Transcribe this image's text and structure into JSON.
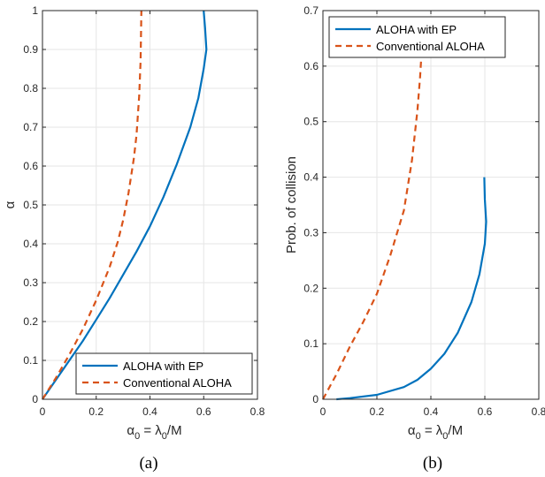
{
  "chart_data": [
    {
      "type": "line",
      "panel_label": "(a)",
      "xlabel_base": "α",
      "xlabel_sub": "0",
      "xlabel_mid": " = λ",
      "xlabel_sub2": "0",
      "xlabel_end": "/M",
      "ylabel": "α",
      "xlim": [
        0,
        0.8
      ],
      "ylim": [
        0,
        1
      ],
      "xticks": [
        "0",
        "0.2",
        "0.4",
        "0.6",
        "0.8"
      ],
      "yticks": [
        "0",
        "0.1",
        "0.2",
        "0.3",
        "0.4",
        "0.5",
        "0.6",
        "0.7",
        "0.8",
        "0.9",
        "1"
      ],
      "grid": true,
      "legend_position": "bottom-right",
      "series": [
        {
          "name": "ALOHA with EP",
          "color": "#0072BD",
          "style": "solid",
          "points": [
            [
              0,
              0
            ],
            [
              0.05,
              0.05
            ],
            [
              0.1,
              0.1
            ],
            [
              0.15,
              0.15
            ],
            [
              0.2,
              0.205
            ],
            [
              0.25,
              0.26
            ],
            [
              0.3,
              0.32
            ],
            [
              0.35,
              0.38
            ],
            [
              0.4,
              0.445
            ],
            [
              0.45,
              0.52
            ],
            [
              0.5,
              0.605
            ],
            [
              0.55,
              0.7
            ],
            [
              0.58,
              0.775
            ],
            [
              0.6,
              0.85
            ],
            [
              0.61,
              0.9
            ],
            [
              0.605,
              0.955
            ],
            [
              0.6,
              1.0
            ]
          ]
        },
        {
          "name": "Conventional ALOHA",
          "color": "#D95319",
          "style": "dashed",
          "points": [
            [
              0,
              0
            ],
            [
              0.05,
              0.055
            ],
            [
              0.1,
              0.115
            ],
            [
              0.15,
              0.18
            ],
            [
              0.2,
              0.255
            ],
            [
              0.25,
              0.34
            ],
            [
              0.28,
              0.405
            ],
            [
              0.3,
              0.46
            ],
            [
              0.32,
              0.53
            ],
            [
              0.34,
              0.62
            ],
            [
              0.35,
              0.68
            ],
            [
              0.36,
              0.78
            ],
            [
              0.365,
              0.87
            ],
            [
              0.368,
              1.0
            ]
          ]
        }
      ]
    },
    {
      "type": "line",
      "panel_label": "(b)",
      "xlabel_base": "α",
      "xlabel_sub": "0",
      "xlabel_mid": " = λ",
      "xlabel_sub2": "0",
      "xlabel_end": "/M",
      "ylabel": "Prob. of collision",
      "xlim": [
        0,
        0.8
      ],
      "ylim": [
        0,
        0.7
      ],
      "xticks": [
        "0",
        "0.2",
        "0.4",
        "0.6",
        "0.8"
      ],
      "yticks": [
        "0",
        "0.1",
        "0.2",
        "0.3",
        "0.4",
        "0.5",
        "0.6",
        "0.7"
      ],
      "grid": true,
      "legend_position": "top-left",
      "series": [
        {
          "name": "ALOHA with EP",
          "color": "#0072BD",
          "style": "solid",
          "points": [
            [
              0.05,
              0.0
            ],
            [
              0.1,
              0.002
            ],
            [
              0.2,
              0.008
            ],
            [
              0.3,
              0.022
            ],
            [
              0.35,
              0.035
            ],
            [
              0.4,
              0.055
            ],
            [
              0.45,
              0.082
            ],
            [
              0.5,
              0.12
            ],
            [
              0.55,
              0.175
            ],
            [
              0.58,
              0.225
            ],
            [
              0.6,
              0.28
            ],
            [
              0.605,
              0.32
            ],
            [
              0.6,
              0.36
            ],
            [
              0.598,
              0.4
            ]
          ]
        },
        {
          "name": "Conventional ALOHA",
          "color": "#D95319",
          "style": "dashed",
          "points": [
            [
              0,
              0
            ],
            [
              0.05,
              0.045
            ],
            [
              0.1,
              0.095
            ],
            [
              0.15,
              0.14
            ],
            [
              0.2,
              0.19
            ],
            [
              0.25,
              0.26
            ],
            [
              0.3,
              0.34
            ],
            [
              0.33,
              0.43
            ],
            [
              0.35,
              0.52
            ],
            [
              0.36,
              0.58
            ],
            [
              0.365,
              0.62
            ]
          ]
        }
      ]
    }
  ]
}
